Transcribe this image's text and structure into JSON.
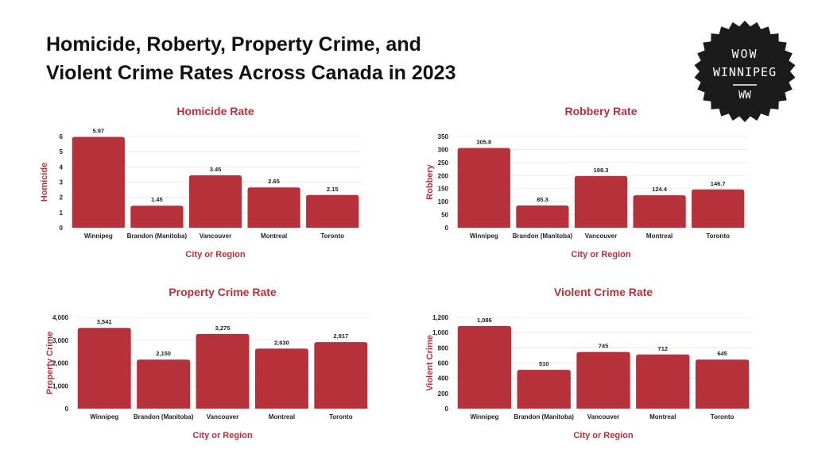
{
  "header": {
    "title_line1": "Homicide, Roberty, Property Crime, and",
    "title_line2": "Violent Crime Rates Across Canada in 2023"
  },
  "badge": {
    "line1": "WOW",
    "line2": "WINNIPEG",
    "line3": "WW"
  },
  "colors": {
    "bar": "#b7313b",
    "title": "#b7313b",
    "text": "#222222",
    "grid": "#e6e6e6",
    "badge_bg": "#1b1b1b"
  },
  "chart_data": [
    {
      "type": "bar",
      "title": "Homicide Rate",
      "xlabel": "City or Region",
      "ylabel": "Homicide",
      "categories": [
        "Winnipeg",
        "Brandon (Manitoba)",
        "Vancouver",
        "Montreal",
        "Toronto"
      ],
      "values": [
        5.97,
        1.45,
        3.45,
        2.65,
        2.15
      ],
      "value_labels": [
        "5.97",
        "1.45",
        "3.45",
        "2.65",
        "2.15"
      ],
      "ylim": [
        0,
        6
      ],
      "yticks": [
        0,
        1,
        2,
        3,
        4,
        5,
        6
      ],
      "ytick_labels": [
        "0",
        "1",
        "2",
        "3",
        "4",
        "5",
        "6"
      ]
    },
    {
      "type": "bar",
      "title": "Robbery Rate",
      "xlabel": "City or Region",
      "ylabel": "Robbery",
      "categories": [
        "Winnipeg",
        "Brandon (Manitoba)",
        "Vancouver",
        "Montreal",
        "Toronto"
      ],
      "values": [
        305.8,
        85.3,
        198.3,
        124.4,
        146.7
      ],
      "value_labels": [
        "305.8",
        "85.3",
        "198.3",
        "124.4",
        "146.7"
      ],
      "ylim": [
        0,
        350
      ],
      "yticks": [
        0,
        50,
        100,
        150,
        200,
        250,
        300,
        350
      ],
      "ytick_labels": [
        "0",
        "50",
        "100",
        "150",
        "200",
        "250",
        "300",
        "350"
      ]
    },
    {
      "type": "bar",
      "title": "Property Crime Rate",
      "xlabel": "City or Region",
      "ylabel": "Property Crime",
      "categories": [
        "Winnipeg",
        "Brandon (Manitoba)",
        "Vancouver",
        "Montreal",
        "Toronto"
      ],
      "values": [
        3541,
        2150,
        3275,
        2630,
        2917
      ],
      "value_labels": [
        "3,541",
        "2,150",
        "3,275",
        "2,630",
        "2,917"
      ],
      "ylim": [
        0,
        4000
      ],
      "yticks": [
        0,
        1000,
        2000,
        3000,
        4000
      ],
      "ytick_labels": [
        "0",
        "1,000",
        "2,000",
        "3,000",
        "4,000"
      ]
    },
    {
      "type": "bar",
      "title": "Violent Crime Rate",
      "xlabel": "City or Region",
      "ylabel": "Violent Crime",
      "categories": [
        "Winnipeg",
        "Brandon (Manitoba)",
        "Vancouver",
        "Montreal",
        "Toronto"
      ],
      "values": [
        1086,
        510,
        745,
        712,
        645
      ],
      "value_labels": [
        "1,086",
        "510",
        "745",
        "712",
        "645"
      ],
      "ylim": [
        0,
        1200
      ],
      "yticks": [
        0,
        200,
        400,
        600,
        800,
        1000,
        1200
      ],
      "ytick_labels": [
        "0",
        "200",
        "400",
        "600",
        "800",
        "1,000",
        "1,200"
      ]
    }
  ]
}
